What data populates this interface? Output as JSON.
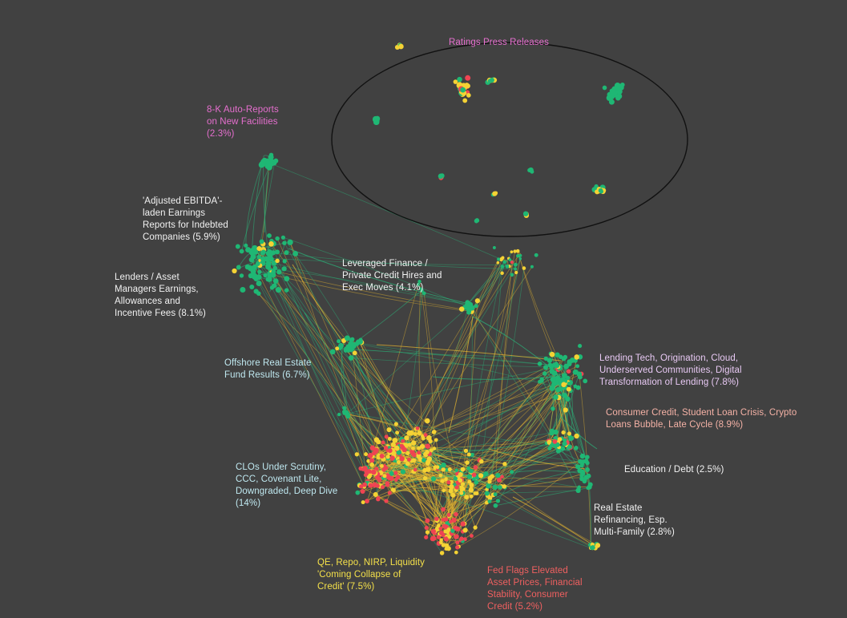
{
  "colors": {
    "background": "#414141",
    "node_green": "#1fb774",
    "node_yellow": "#f4d234",
    "node_red": "#ef4452",
    "edge_green": "#2bb57a",
    "edge_yellow": "#e8b830",
    "ellipse_stroke": "#111111"
  },
  "labels": {
    "ratings": "Ratings Press Releases",
    "auto8k": "8-K Auto-Reports\non New Facilities\n(2.3%)",
    "ebitda": "'Adjusted EBITDA'-\nladen Earnings\nReports for Indebted\nCompanies (5.9%)",
    "lenders": "Lenders / Asset\nManagers Earnings,\nAllowances and\nIncentive Fees (8.1%)",
    "levfin": "Leveraged Finance /\nPrivate Credit Hires and\nExec Moves (4.1%)",
    "offshore": "Offshore Real Estate\nFund Results (6.7%)",
    "lendtech": "Lending Tech, Origination, Cloud,\nUnderserved Communities, Digital\nTransformation of Lending (7.8%)",
    "consumer": "Consumer Credit, Student Loan Crisis, Crypto\nLoans Bubble, Late Cycle (8.9%)",
    "education": "Education / Debt (2.5%)",
    "clos": "CLOs Under Scrutiny,\nCCC, Covenant Lite,\nDowngraded, Deep Dive\n(14%)",
    "realestate": "Real Estate\nRefinancing, Esp.\nMulti-Family (2.8%)",
    "qe": "QE, Repo, NIRP, Liquidity\n'Coming Collapse of\nCredit' (7.5%)",
    "fed": "Fed Flags Elevated\nAsset Prices, Financial\nStability, Consumer\nCredit (5.2%)"
  }
}
